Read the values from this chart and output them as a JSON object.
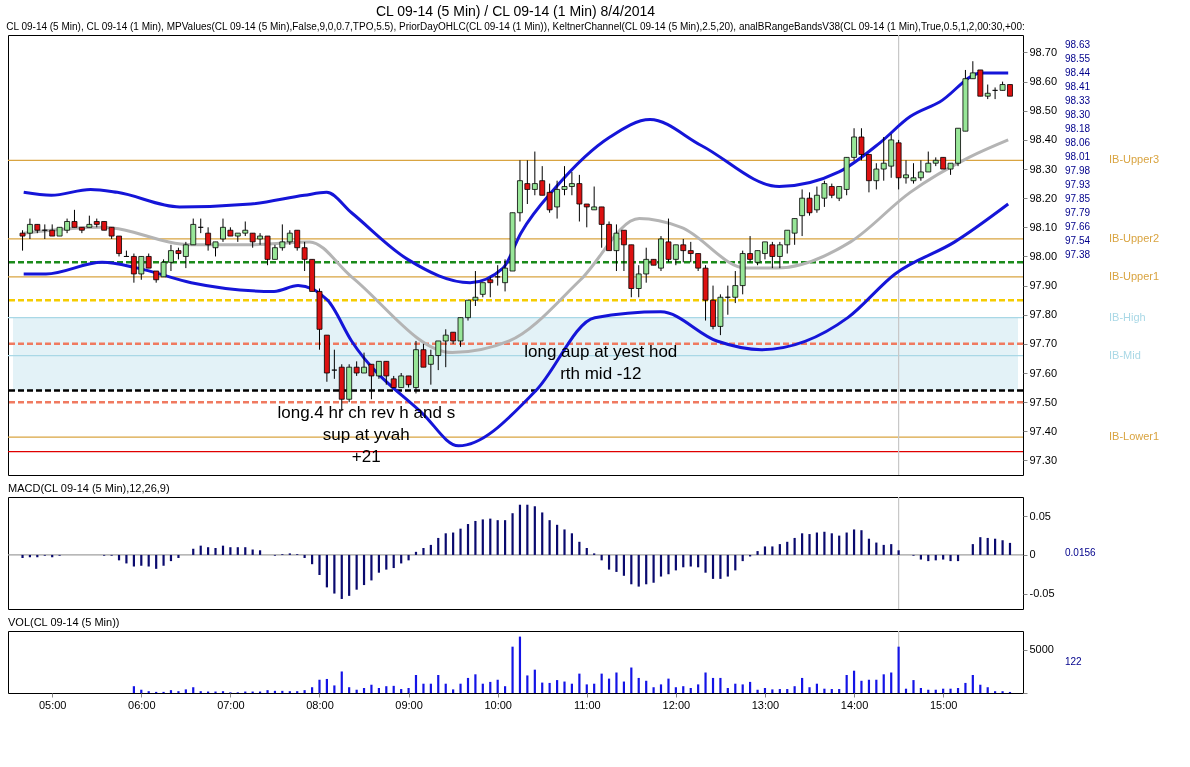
{
  "chart_data": [
    {
      "type": "candlestick",
      "title": "CL 09-14 (5 Min) / CL 09-14 (1 Min)  8/4/2014",
      "subtitle": "CL 09-14 (5 Min), CL 09-14 (1 Min), MPValues(CL 09-14 (5 Min),False,9,0,0.7,TPO,5.5), PriorDayOHLC(CL 09-14 (1 Min)), KeltnerChannel(CL 09-14 (5 Min),2.5,20), analBRangeBandsV38(CL 09-14 (1 Min),True,0.5,1,2,00:30,+00:",
      "x": [
        4.667,
        4.75,
        4.833,
        4.917,
        5,
        5.083,
        5.167,
        5.25,
        5.333,
        5.417,
        5.5,
        5.583,
        5.667,
        5.75,
        5.833,
        5.917,
        6,
        6.083,
        6.167,
        6.25,
        6.333,
        6.417,
        6.5,
        6.583,
        6.667,
        6.75,
        6.833,
        6.917,
        7,
        7.083,
        7.167,
        7.25,
        7.333,
        7.417,
        7.5,
        7.583,
        7.667,
        7.75,
        7.833,
        7.917,
        8,
        8.083,
        8.167,
        8.25,
        8.333,
        8.417,
        8.5,
        8.583,
        8.667,
        8.75,
        8.833,
        8.917,
        9,
        9.083,
        9.167,
        9.25,
        9.333,
        9.417,
        9.5,
        9.583,
        9.667,
        9.75,
        9.833,
        9.917,
        10,
        10.083,
        10.167,
        10.25,
        10.333,
        10.417,
        10.5,
        10.583,
        10.667,
        10.75,
        10.833,
        10.917,
        11,
        11.083,
        11.167,
        11.25,
        11.333,
        11.417,
        11.5,
        11.583,
        11.667,
        11.75,
        11.833,
        11.917,
        12,
        12.083,
        12.167,
        12.25,
        12.333,
        12.417,
        12.5,
        12.583,
        12.667,
        12.75,
        12.833,
        12.917,
        13,
        13.083,
        13.167,
        13.25,
        13.333,
        13.417,
        13.5,
        13.583,
        13.667,
        13.75,
        13.833,
        13.917,
        14,
        14.083,
        14.167,
        14.25,
        14.333,
        14.417,
        14.5,
        14.583,
        14.667,
        14.75,
        14.833,
        14.917,
        15,
        15.083,
        15.167,
        15.25,
        15.333,
        15.417,
        15.5,
        15.583,
        15.667,
        15.75
      ],
      "ohlc": [
        [
          98.08,
          98.09,
          98.02,
          98.07
        ],
        [
          98.08,
          98.13,
          98.06,
          98.11
        ],
        [
          98.11,
          98.11,
          98.08,
          98.09
        ],
        [
          98.09,
          98.11,
          98.06,
          98.09
        ],
        [
          98.09,
          98.11,
          98.07,
          98.07
        ],
        [
          98.07,
          98.1,
          98.07,
          98.1
        ],
        [
          98.09,
          98.13,
          98.08,
          98.12
        ],
        [
          98.12,
          98.16,
          98.1,
          98.1
        ],
        [
          98.1,
          98.1,
          98.08,
          98.09
        ],
        [
          98.1,
          98.14,
          98.1,
          98.11
        ],
        [
          98.12,
          98.13,
          98.1,
          98.11
        ],
        [
          98.12,
          98.12,
          98.09,
          98.09
        ],
        [
          98.1,
          98.1,
          98.06,
          98.07
        ],
        [
          98.07,
          98.07,
          98.0,
          98.01
        ],
        [
          98.0,
          98.02,
          98.0,
          98.0
        ],
        [
          98.0,
          98.01,
          97.91,
          97.94
        ],
        [
          97.94,
          98.0,
          97.92,
          98.0
        ],
        [
          98.0,
          98.01,
          97.96,
          97.96
        ],
        [
          97.95,
          97.95,
          97.91,
          97.92
        ],
        [
          97.93,
          97.99,
          97.93,
          97.98
        ],
        [
          97.98,
          98.04,
          97.95,
          98.02
        ],
        [
          98.02,
          98.03,
          97.99,
          98.01
        ],
        [
          98.0,
          98.05,
          97.96,
          98.04
        ],
        [
          98.04,
          98.13,
          98.04,
          98.11
        ],
        [
          98.1,
          98.13,
          98.08,
          98.1
        ],
        [
          98.08,
          98.1,
          98.02,
          98.04
        ],
        [
          98.03,
          98.05,
          98.0,
          98.05
        ],
        [
          98.06,
          98.13,
          98.05,
          98.1
        ],
        [
          98.09,
          98.1,
          98.07,
          98.07
        ],
        [
          98.07,
          98.08,
          98.05,
          98.08
        ],
        [
          98.08,
          98.12,
          98.07,
          98.09
        ],
        [
          98.08,
          98.08,
          98.03,
          98.05
        ],
        [
          98.06,
          98.08,
          98.04,
          98.07
        ],
        [
          98.07,
          98.07,
          97.97,
          97.99
        ],
        [
          97.99,
          98.04,
          97.99,
          98.03
        ],
        [
          98.03,
          98.11,
          98.02,
          98.05
        ],
        [
          98.05,
          98.09,
          98.04,
          98.08
        ],
        [
          98.09,
          98.09,
          98.02,
          98.03
        ],
        [
          98.03,
          98.05,
          97.95,
          97.99
        ],
        [
          97.99,
          97.99,
          97.88,
          97.88
        ],
        [
          97.88,
          97.89,
          97.68,
          97.75
        ],
        [
          97.73,
          97.73,
          97.57,
          97.6
        ],
        [
          97.61,
          97.68,
          97.58,
          97.61
        ],
        [
          97.62,
          97.63,
          97.47,
          97.51
        ],
        [
          97.51,
          97.63,
          97.5,
          97.62
        ],
        [
          97.62,
          97.64,
          97.59,
          97.6
        ],
        [
          97.6,
          97.67,
          97.6,
          97.62
        ],
        [
          97.63,
          97.63,
          97.51,
          97.59
        ],
        [
          97.59,
          97.64,
          97.58,
          97.64
        ],
        [
          97.64,
          97.64,
          97.56,
          97.59
        ],
        [
          97.58,
          97.59,
          97.55,
          97.55
        ],
        [
          97.55,
          97.6,
          97.55,
          97.59
        ],
        [
          97.59,
          97.59,
          97.55,
          97.56
        ],
        [
          97.55,
          97.71,
          97.53,
          97.68
        ],
        [
          97.68,
          97.7,
          97.62,
          97.62
        ],
        [
          97.63,
          97.68,
          97.56,
          97.66
        ],
        [
          97.66,
          97.71,
          97.61,
          97.71
        ],
        [
          97.71,
          97.75,
          97.62,
          97.73
        ],
        [
          97.74,
          97.74,
          97.7,
          97.71
        ],
        [
          97.71,
          97.79,
          97.69,
          97.79
        ],
        [
          97.79,
          97.85,
          97.78,
          97.85
        ],
        [
          97.85,
          97.95,
          97.83,
          97.86
        ],
        [
          97.87,
          97.91,
          97.86,
          97.91
        ],
        [
          97.92,
          97.93,
          97.86,
          97.91
        ],
        [
          97.93,
          97.97,
          97.9,
          97.93
        ],
        [
          97.91,
          97.99,
          97.88,
          97.96
        ],
        [
          97.95,
          98.15,
          97.95,
          98.15
        ],
        [
          98.15,
          98.33,
          98.12,
          98.26
        ],
        [
          98.25,
          98.33,
          98.18,
          98.23
        ],
        [
          98.23,
          98.36,
          98.21,
          98.25
        ],
        [
          98.26,
          98.31,
          98.21,
          98.21
        ],
        [
          98.22,
          98.25,
          98.15,
          98.16
        ],
        [
          98.17,
          98.26,
          98.13,
          98.23
        ],
        [
          98.23,
          98.31,
          98.21,
          98.24
        ],
        [
          98.24,
          98.29,
          98.21,
          98.25
        ],
        [
          98.25,
          98.28,
          98.12,
          98.18
        ],
        [
          98.18,
          98.18,
          98.1,
          98.17
        ],
        [
          98.16,
          98.24,
          98.16,
          98.17
        ],
        [
          98.17,
          98.17,
          98.03,
          98.11
        ],
        [
          98.11,
          98.12,
          98.02,
          98.02
        ],
        [
          98.02,
          98.11,
          97.95,
          98.08
        ],
        [
          98.09,
          98.09,
          97.95,
          98.04
        ],
        [
          98.04,
          98.04,
          97.86,
          97.89
        ],
        [
          97.89,
          97.97,
          97.86,
          97.94
        ],
        [
          97.94,
          98.03,
          97.91,
          97.99
        ],
        [
          97.99,
          97.99,
          97.97,
          97.97
        ],
        [
          97.96,
          98.07,
          97.95,
          98.06
        ],
        [
          98.05,
          98.13,
          97.98,
          97.99
        ],
        [
          97.99,
          98.04,
          97.97,
          98.04
        ],
        [
          98.04,
          98.06,
          97.98,
          98.02
        ],
        [
          98.02,
          98.05,
          97.98,
          98.01
        ],
        [
          98.01,
          98.01,
          97.95,
          97.96
        ],
        [
          97.96,
          97.97,
          97.78,
          97.85
        ],
        [
          97.85,
          97.9,
          97.75,
          97.76
        ],
        [
          97.76,
          97.87,
          97.73,
          97.86
        ],
        [
          97.86,
          97.9,
          97.8,
          97.86
        ],
        [
          97.86,
          97.95,
          97.84,
          97.9
        ],
        [
          97.9,
          98.02,
          97.87,
          98.01
        ],
        [
          98.01,
          98.07,
          97.98,
          97.99
        ],
        [
          97.98,
          98.02,
          97.97,
          98.02
        ],
        [
          98.01,
          98.05,
          97.99,
          98.05
        ],
        [
          98.04,
          98.05,
          97.96,
          98.0
        ],
        [
          98.0,
          98.05,
          97.96,
          98.04
        ],
        [
          98.04,
          98.09,
          98.01,
          98.09
        ],
        [
          98.08,
          98.13,
          98.04,
          98.13
        ],
        [
          98.14,
          98.23,
          98.07,
          98.2
        ],
        [
          98.2,
          98.22,
          98.14,
          98.15
        ],
        [
          98.16,
          98.24,
          98.15,
          98.21
        ],
        [
          98.2,
          98.26,
          98.17,
          98.25
        ],
        [
          98.24,
          98.25,
          98.2,
          98.21
        ],
        [
          98.2,
          98.24,
          98.19,
          98.24
        ],
        [
          98.23,
          98.34,
          98.21,
          98.34
        ],
        [
          98.34,
          98.44,
          98.33,
          98.41
        ],
        [
          98.41,
          98.44,
          98.33,
          98.35
        ],
        [
          98.35,
          98.35,
          98.22,
          98.26
        ],
        [
          98.26,
          98.32,
          98.23,
          98.3
        ],
        [
          98.3,
          98.41,
          98.26,
          98.32
        ],
        [
          98.31,
          98.42,
          98.27,
          98.4
        ],
        [
          98.39,
          98.4,
          98.23,
          98.27
        ],
        [
          98.27,
          98.33,
          98.25,
          98.28
        ],
        [
          98.26,
          98.32,
          98.25,
          98.27
        ],
        [
          98.27,
          98.33,
          98.26,
          98.29
        ],
        [
          98.29,
          98.36,
          98.29,
          98.32
        ],
        [
          98.32,
          98.34,
          98.31,
          98.33
        ],
        [
          98.34,
          98.34,
          98.3,
          98.3
        ],
        [
          98.3,
          98.32,
          98.28,
          98.32
        ],
        [
          98.32,
          98.44,
          98.31,
          98.44
        ],
        [
          98.43,
          98.64,
          98.43,
          98.61
        ],
        [
          98.61,
          98.67,
          98.61,
          98.63
        ],
        [
          98.64,
          98.64,
          98.55,
          98.55
        ],
        [
          98.55,
          98.59,
          98.54,
          98.56
        ],
        [
          98.57,
          98.58,
          98.54,
          98.57
        ],
        [
          98.57,
          98.6,
          98.57,
          98.59
        ],
        [
          98.59,
          98.59,
          98.55,
          98.55
        ]
      ],
      "series": [
        {
          "type": "line",
          "color": "#1515d8",
          "x": [
            4.68,
            4.99,
            5.43,
            5.73,
            6.43,
            7.23,
            7.83,
            8.08,
            8.36,
            8.99,
            9.69,
            10.06,
            10.26,
            10.66,
            11.26,
            11.71,
            12.29,
            13.16,
            13.83,
            14.29,
            14.63,
            14.96,
            15.43,
            15.73
          ],
          "values": [
            98.22,
            98.21,
            98.23,
            98.22,
            98.17,
            98.18,
            98.21,
            98.22,
            98.15,
            97.99,
            97.91,
            97.96,
            98.08,
            98.24,
            98.41,
            98.47,
            98.38,
            98.24,
            98.29,
            98.39,
            98.48,
            98.53,
            98.63,
            98.63
          ]
        },
        {
          "type": "line",
          "color": "#b4b4b4",
          "x": [
            4.68,
            5.56,
            6.56,
            7.23,
            7.89,
            8.36,
            9.49,
            10.13,
            10.93,
            11.59,
            12.06,
            12.79,
            13.13,
            13.96,
            14.63,
            15.29,
            15.73
          ],
          "values": [
            98.08,
            98.1,
            98.04,
            98.04,
            98.05,
            97.93,
            97.67,
            97.71,
            97.92,
            98.13,
            98.1,
            97.96,
            97.96,
            98.05,
            98.22,
            98.34,
            98.4
          ]
        },
        {
          "type": "line",
          "color": "#1515d8",
          "x": [
            4.68,
            4.93,
            5.56,
            5.96,
            6.56,
            7.49,
            7.76,
            8.09,
            8.36,
            9.16,
            9.56,
            10.43,
            11.09,
            11.83,
            12.46,
            12.96,
            13.93,
            14.46,
            15.13,
            15.73
          ],
          "values": [
            97.94,
            97.94,
            97.98,
            97.96,
            97.91,
            97.88,
            97.9,
            97.85,
            97.71,
            97.46,
            97.35,
            97.54,
            97.79,
            97.81,
            97.71,
            97.68,
            97.79,
            97.94,
            98.05,
            98.18
          ]
        }
      ],
      "xlim": [
        4.56,
        15.84
      ],
      "ylim": [
        97.25,
        98.76
      ],
      "yticks": [
        {
          "value": 97.3,
          "label": "97.30"
        },
        {
          "value": 97.4,
          "label": "97.40"
        },
        {
          "value": 97.5,
          "label": "97.50"
        },
        {
          "value": 97.6,
          "label": "97.60"
        },
        {
          "value": 97.7,
          "label": "97.70"
        },
        {
          "value": 97.8,
          "label": "97.80"
        },
        {
          "value": 97.9,
          "label": "97.90"
        },
        {
          "value": 98.0,
          "label": "98.00"
        },
        {
          "value": 98.1,
          "label": "98.10"
        },
        {
          "value": 98.2,
          "label": "98.20"
        },
        {
          "value": 98.3,
          "label": "98.30"
        },
        {
          "value": 98.4,
          "label": "98.40"
        },
        {
          "value": 98.5,
          "label": "98.50"
        },
        {
          "value": 98.6,
          "label": "98.60"
        },
        {
          "value": 98.7,
          "label": "98.70"
        }
      ],
      "tick_labels": "y",
      "bands": [
        {
          "axis": "y",
          "from": 97.54,
          "to": 97.79,
          "color": "#e3f2f7"
        }
      ],
      "ref_lines": [
        {
          "axis": "y",
          "value": 98.33,
          "label": "IB-Upper3",
          "color": "#d9a441"
        },
        {
          "axis": "y",
          "value": 98.06,
          "label": "IB-Upper2",
          "color": "#d9a441"
        },
        {
          "axis": "y",
          "value": 97.93,
          "label": "IB-Upper1",
          "color": "#d9a441"
        },
        {
          "axis": "y",
          "value": 97.79,
          "label": "IB-High",
          "color": "#a9d8e6"
        },
        {
          "axis": "y",
          "value": 97.66,
          "label": "IB-Mid",
          "color": "#a9d8e6"
        },
        {
          "axis": "y",
          "value": 97.38,
          "label": "IB-Lower1",
          "color": "#d9a441"
        },
        {
          "axis": "y",
          "value": 97.98,
          "color": "#1a8a1a",
          "line_style": "dashed"
        },
        {
          "axis": "y",
          "value": 97.85,
          "color": "#f5cc00",
          "line_style": "dashed"
        },
        {
          "axis": "y",
          "value": 97.7,
          "color": "#f07a60",
          "line_style": "dashed"
        },
        {
          "axis": "y",
          "value": 97.54,
          "color": "#000000",
          "line_style": "dashed"
        },
        {
          "axis": "y",
          "value": 97.5,
          "color": "#f07a60",
          "line_style": "dashed"
        },
        {
          "axis": "y",
          "value": 97.33,
          "color": "#e00000"
        },
        {
          "axis": "x",
          "value": 14.5,
          "color": "#c8c8c8"
        }
      ],
      "annotations": [
        "long.4 hr ch rev h and s",
        "sup at yvah",
        "+21",
        "long aup at yest hod",
        "rth mid -12",
        "98.63",
        "98.55",
        "98.44",
        "98.41",
        "98.33",
        "98.30",
        "98.18",
        "98.06",
        "98.01",
        "97.98",
        "97.93",
        "97.85",
        "97.79",
        "97.66",
        "97.54",
        "97.38"
      ]
    },
    {
      "type": "bar",
      "title": "MACD(CL 09-14 (5 Min),12,26,9)",
      "color": "#0a0a6e",
      "x": [
        4.667,
        4.75,
        4.833,
        4.917,
        5,
        5.083,
        5.167,
        5.25,
        5.333,
        5.417,
        5.5,
        5.583,
        5.667,
        5.75,
        5.833,
        5.917,
        6,
        6.083,
        6.167,
        6.25,
        6.333,
        6.417,
        6.5,
        6.583,
        6.667,
        6.75,
        6.833,
        6.917,
        7,
        7.083,
        7.167,
        7.25,
        7.333,
        7.417,
        7.5,
        7.583,
        7.667,
        7.75,
        7.833,
        7.917,
        8,
        8.083,
        8.167,
        8.25,
        8.333,
        8.417,
        8.5,
        8.583,
        8.667,
        8.75,
        8.833,
        8.917,
        9,
        9.083,
        9.167,
        9.25,
        9.333,
        9.417,
        9.5,
        9.583,
        9.667,
        9.75,
        9.833,
        9.917,
        10,
        10.083,
        10.167,
        10.25,
        10.333,
        10.417,
        10.5,
        10.583,
        10.667,
        10.75,
        10.833,
        10.917,
        11,
        11.083,
        11.167,
        11.25,
        11.333,
        11.417,
        11.5,
        11.583,
        11.667,
        11.75,
        11.833,
        11.917,
        12,
        12.083,
        12.167,
        12.25,
        12.333,
        12.417,
        12.5,
        12.583,
        12.667,
        12.75,
        12.833,
        12.917,
        13,
        13.083,
        13.167,
        13.25,
        13.333,
        13.417,
        13.5,
        13.583,
        13.667,
        13.75,
        13.833,
        13.917,
        14,
        14.083,
        14.167,
        14.25,
        14.333,
        14.417,
        14.5,
        14.583,
        14.667,
        14.75,
        14.833,
        14.917,
        15,
        15.083,
        15.167,
        15.25,
        15.333,
        15.417,
        15.5,
        15.583,
        15.667,
        15.75
      ],
      "values": [
        -0.004,
        -0.003,
        -0.003,
        -0.001,
        -0.003,
        -0.001,
        0,
        0,
        0,
        0,
        0,
        -0.001,
        -0.001,
        -0.007,
        -0.011,
        -0.015,
        -0.014,
        -0.015,
        -0.018,
        -0.014,
        -0.008,
        -0.004,
        0,
        0.008,
        0.012,
        0.01,
        0.009,
        0.012,
        0.01,
        0.01,
        0.01,
        0.007,
        0.006,
        0,
        -0.001,
        0.001,
        0.002,
        0.001,
        -0.004,
        -0.012,
        -0.026,
        -0.042,
        -0.05,
        -0.057,
        -0.053,
        -0.045,
        -0.039,
        -0.033,
        -0.023,
        -0.019,
        -0.017,
        -0.011,
        -0.007,
        0.004,
        0.009,
        0.013,
        0.022,
        0.028,
        0.029,
        0.034,
        0.04,
        0.044,
        0.046,
        0.047,
        0.045,
        0.045,
        0.054,
        0.065,
        0.065,
        0.063,
        0.055,
        0.045,
        0.039,
        0.033,
        0.028,
        0.017,
        0.009,
        0.002,
        -0.007,
        -0.019,
        -0.022,
        -0.027,
        -0.038,
        -0.041,
        -0.038,
        -0.036,
        -0.028,
        -0.025,
        -0.02,
        -0.016,
        -0.015,
        -0.016,
        -0.023,
        -0.031,
        -0.031,
        -0.028,
        -0.02,
        -0.008,
        -0.002,
        0.005,
        0.011,
        0.011,
        0.014,
        0.017,
        0.022,
        0.028,
        0.027,
        0.029,
        0.03,
        0.028,
        0.025,
        0.029,
        0.033,
        0.032,
        0.021,
        0.016,
        0.013,
        0.014,
        0.006,
        0,
        -0.001,
        -0.006,
        -0.008,
        -0.007,
        -0.006,
        -0.008,
        -0.008,
        0,
        0.014,
        0.023,
        0.022,
        0.021,
        0.019,
        0.0156
      ],
      "xlim": [
        4.56,
        15.84
      ],
      "ylim": [
        -0.07,
        0.075
      ],
      "yticks": [
        -0.05,
        0,
        0.05
      ],
      "tick_labels": "y",
      "ref_lines": [
        {
          "axis": "y",
          "value": 0,
          "color": "#a0a0a0"
        },
        {
          "axis": "x",
          "value": 14.5,
          "color": "#c8c8c8"
        }
      ],
      "annotations": [
        "0.0156"
      ]
    },
    {
      "type": "bar",
      "title": "VOL(CL 09-14 (5 Min))",
      "color": "#1414e6",
      "x": [
        5.917,
        6,
        6.083,
        6.167,
        6.25,
        6.333,
        6.417,
        6.5,
        6.583,
        6.667,
        6.75,
        6.833,
        6.917,
        7,
        7.083,
        7.167,
        7.25,
        7.333,
        7.417,
        7.5,
        7.583,
        7.667,
        7.75,
        7.833,
        7.917,
        8,
        8.083,
        8.167,
        8.25,
        8.333,
        8.417,
        8.5,
        8.583,
        8.667,
        8.75,
        8.833,
        8.917,
        9,
        9.083,
        9.167,
        9.25,
        9.333,
        9.417,
        9.5,
        9.583,
        9.667,
        9.75,
        9.833,
        9.917,
        10,
        10.083,
        10.167,
        10.25,
        10.333,
        10.417,
        10.5,
        10.583,
        10.667,
        10.75,
        10.833,
        10.917,
        11,
        11.083,
        11.167,
        11.25,
        11.333,
        11.417,
        11.5,
        11.583,
        11.667,
        11.75,
        11.833,
        11.917,
        12,
        12.083,
        12.167,
        12.25,
        12.333,
        12.417,
        12.5,
        12.583,
        12.667,
        12.75,
        12.833,
        12.917,
        13,
        13.083,
        13.167,
        13.25,
        13.333,
        13.417,
        13.5,
        13.583,
        13.667,
        13.75,
        13.833,
        13.917,
        14,
        14.083,
        14.167,
        14.25,
        14.333,
        14.417,
        14.5,
        14.583,
        14.667,
        14.75,
        14.833,
        14.917,
        15,
        15.083,
        15.167,
        15.25,
        15.333,
        15.417,
        15.5,
        15.583,
        15.667,
        15.75
      ],
      "values": [
        790,
        380,
        210,
        130,
        130,
        330,
        210,
        420,
        670,
        210,
        170,
        170,
        210,
        80,
        80,
        170,
        170,
        170,
        330,
        250,
        250,
        210,
        210,
        330,
        670,
        1540,
        1630,
        880,
        2500,
        670,
        380,
        580,
        960,
        580,
        790,
        830,
        460,
        580,
        2090,
        1080,
        1080,
        2090,
        1080,
        420,
        1080,
        1750,
        2170,
        1080,
        1290,
        1540,
        790,
        5380,
        6550,
        2040,
        2710,
        1210,
        1170,
        1500,
        1330,
        1080,
        2250,
        1000,
        1080,
        2250,
        1670,
        2380,
        1330,
        2960,
        1750,
        1420,
        670,
        1000,
        1670,
        670,
        790,
        580,
        1000,
        2380,
        1750,
        1750,
        580,
        1080,
        1000,
        1290,
        380,
        580,
        420,
        460,
        460,
        790,
        1750,
        670,
        1080,
        500,
        460,
        460,
        2090,
        2590,
        1420,
        1540,
        1540,
        2170,
        2380,
        5380,
        500,
        1500,
        580,
        380,
        380,
        500,
        500,
        580,
        1170,
        2090,
        960,
        670,
        210,
        210,
        122
      ],
      "xlim": [
        4.56,
        15.84
      ],
      "ylim": [
        0,
        7200
      ],
      "yticks": [
        {
          "value": 0,
          "label": null
        },
        5000
      ],
      "xticks": [
        {
          "value": 5,
          "label": "05:00"
        },
        {
          "value": 6,
          "label": "06:00"
        },
        {
          "value": 7,
          "label": "07:00"
        },
        {
          "value": 8,
          "label": "08:00"
        },
        {
          "value": 9,
          "label": "09:00"
        },
        {
          "value": 10,
          "label": "10:00"
        },
        {
          "value": 11,
          "label": "11:00"
        },
        {
          "value": 12,
          "label": "12:00"
        },
        {
          "value": 13,
          "label": "13:00"
        },
        {
          "value": 14,
          "label": "14:00"
        },
        {
          "value": 15,
          "label": "15:00"
        }
      ],
      "ref_lines": [
        {
          "axis": "x",
          "value": 14.5,
          "color": "#c8c8c8"
        }
      ],
      "annotations": [
        "122"
      ]
    }
  ]
}
